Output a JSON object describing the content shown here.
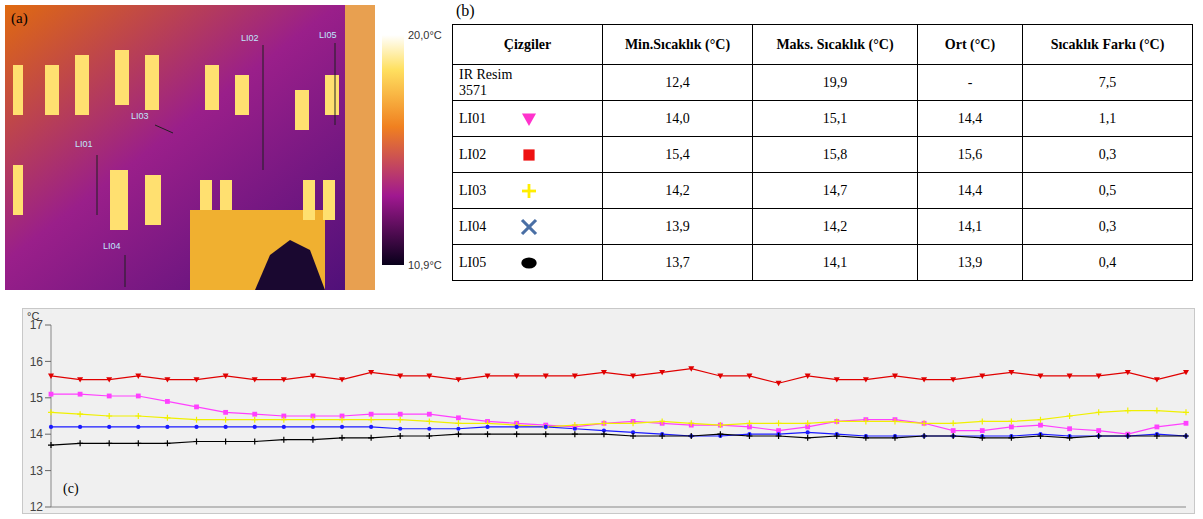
{
  "image": {
    "letter": "(a)",
    "line_labels": [
      "LI01",
      "LI02",
      "LI03",
      "LI04",
      "LI05"
    ],
    "colorbar": {
      "range": [
        10.9,
        20.0
      ],
      "ticks": [
        {
          "value": 20.0,
          "label": "20,0°C"
        },
        {
          "value": 10.9,
          "label": "10,9°C"
        }
      ]
    }
  },
  "table": {
    "letter": "(b)",
    "header": [
      "Çizgiler",
      "Min.Sıcaklık (°C)",
      "Maks. Sıcaklık (°C)",
      "Ort (°C)",
      "Sıcaklık Farkı (°C)"
    ],
    "rows": [
      {
        "cells": [
          "IR Resim 3571",
          "12,4",
          "19,9",
          "-",
          "7,5"
        ]
      },
      {
        "cells": [
          "LI01",
          "14,0",
          "15,1",
          "14,4",
          "1,1"
        ],
        "marker": "triangle_down",
        "color": "#ff33cc"
      },
      {
        "cells": [
          "LI02",
          "15,4",
          "15,8",
          "15,6",
          "0,3"
        ],
        "marker": "square",
        "color": "#ee1111"
      },
      {
        "cells": [
          "LI03",
          "14,2",
          "14,7",
          "14,4",
          "0,5"
        ],
        "marker": "plus",
        "color": "#ffee00"
      },
      {
        "cells": [
          "LI04",
          "13,9",
          "14,2",
          "14,1",
          "0,3"
        ],
        "marker": "x",
        "color": "#4a6fa5"
      },
      {
        "cells": [
          "LI05",
          "13,7",
          "14,1",
          "13,9",
          "0,4"
        ],
        "marker": "ellipse",
        "color": "#000000"
      }
    ]
  },
  "chart_data": {
    "letter": "(c)",
    "type": "line",
    "y_label": "°C",
    "categories": [
      null,
      null,
      null,
      null,
      null,
      null,
      null,
      null,
      null,
      null,
      null,
      null,
      null,
      null,
      null,
      null,
      null,
      null,
      null,
      null,
      null,
      null,
      null,
      null,
      null,
      null,
      null,
      null,
      null,
      null,
      null,
      null,
      null,
      null,
      null,
      null,
      null,
      null,
      null,
      null
    ],
    "ylim": [
      12,
      17
    ],
    "yticks": [
      12,
      13,
      14,
      15,
      16,
      17
    ],
    "tick_labels": "y",
    "grid": false,
    "series": [
      {
        "color": "#e00000",
        "marker": "triangle_down",
        "values": [
          15.6,
          15.5,
          15.5,
          15.6,
          15.5,
          15.5,
          15.6,
          15.5,
          15.5,
          15.6,
          15.5,
          15.7,
          15.6,
          15.6,
          15.5,
          15.6,
          15.6,
          15.6,
          15.6,
          15.7,
          15.6,
          15.7,
          15.8,
          15.6,
          15.6,
          15.4,
          15.6,
          15.5,
          15.5,
          15.6,
          15.5,
          15.5,
          15.6,
          15.7,
          15.6,
          15.6,
          15.6,
          15.7,
          15.5,
          15.7
        ]
      },
      {
        "color": "#ff40ff",
        "marker": "square",
        "values": [
          15.1,
          15.1,
          15.05,
          15.05,
          14.9,
          14.75,
          14.6,
          14.55,
          14.5,
          14.5,
          14.5,
          14.55,
          14.55,
          14.55,
          14.45,
          14.35,
          14.3,
          14.25,
          14.2,
          14.3,
          14.35,
          14.3,
          14.25,
          14.25,
          14.2,
          14.1,
          14.2,
          14.35,
          14.4,
          14.4,
          14.3,
          14.1,
          14.1,
          14.2,
          14.25,
          14.15,
          14.1,
          14.0,
          14.2,
          14.3
        ]
      },
      {
        "color": "#f0f000",
        "marker": "plus",
        "values": [
          14.6,
          14.55,
          14.5,
          14.5,
          14.45,
          14.4,
          14.4,
          14.4,
          14.4,
          14.4,
          14.4,
          14.4,
          14.4,
          14.35,
          14.3,
          14.3,
          14.25,
          14.2,
          14.25,
          14.3,
          14.3,
          14.35,
          14.3,
          14.25,
          14.3,
          14.3,
          14.3,
          14.35,
          14.35,
          14.35,
          14.3,
          14.3,
          14.35,
          14.35,
          14.4,
          14.5,
          14.6,
          14.65,
          14.65,
          14.6
        ]
      },
      {
        "color": "#1a1aff",
        "marker": "circle",
        "values": [
          14.2,
          14.2,
          14.2,
          14.2,
          14.2,
          14.2,
          14.2,
          14.2,
          14.2,
          14.2,
          14.2,
          14.2,
          14.15,
          14.15,
          14.15,
          14.2,
          14.2,
          14.2,
          14.15,
          14.1,
          14.05,
          14.0,
          13.95,
          13.95,
          14.0,
          14.0,
          14.05,
          14.0,
          13.95,
          13.95,
          13.95,
          13.95,
          13.95,
          13.95,
          14.0,
          13.95,
          13.95,
          13.95,
          14.0,
          13.95
        ]
      },
      {
        "color": "#000000",
        "marker": "plus",
        "values": [
          13.7,
          13.75,
          13.75,
          13.75,
          13.75,
          13.8,
          13.8,
          13.8,
          13.85,
          13.85,
          13.9,
          13.9,
          13.95,
          13.95,
          14.0,
          14.0,
          14.0,
          14.0,
          14.0,
          14.0,
          13.95,
          13.95,
          13.95,
          14.0,
          13.95,
          13.95,
          13.9,
          13.95,
          13.9,
          13.9,
          13.95,
          13.95,
          13.9,
          13.9,
          13.95,
          13.9,
          13.95,
          13.95,
          13.95,
          13.95
        ]
      }
    ]
  }
}
